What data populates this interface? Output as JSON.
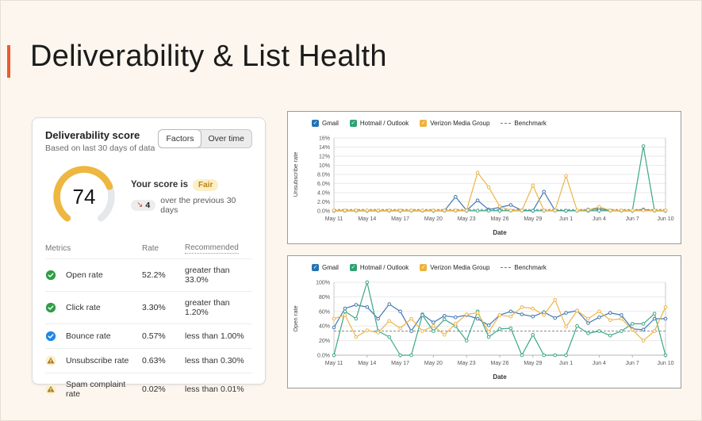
{
  "slide": {
    "title": "Deliverability & List Health",
    "accent_color": "#F0592B",
    "background_color": "#FDF6EE"
  },
  "score_card": {
    "title": "Deliverability score",
    "subtitle": "Based on last 30 days of data",
    "toggle": {
      "factors_label": "Factors",
      "over_time_label": "Over time",
      "selected": "Factors"
    },
    "gauge": {
      "score": "74",
      "max": 100,
      "color": "#EDB740",
      "track_color": "#E5E8EB"
    },
    "score_line": {
      "prefix": "Your score is",
      "rating": "Fair"
    },
    "change_line": {
      "arrow": "↘",
      "delta": "4",
      "text": "over the previous 30 days"
    },
    "table": {
      "col_metrics": "Metrics",
      "col_rate": "Rate",
      "col_recommended": "Recommended",
      "rows": [
        {
          "icon": "check-circle-green",
          "metric": "Open rate",
          "rate": "52.2%",
          "recommended": "greater than 33.0%"
        },
        {
          "icon": "check-circle-green",
          "metric": "Click rate",
          "rate": "3.30%",
          "recommended": "greater than 1.20%"
        },
        {
          "icon": "check-circle-blue",
          "metric": "Bounce rate",
          "rate": "0.57%",
          "recommended": "less than 1.00%"
        },
        {
          "icon": "warning-triangle",
          "metric": "Unsubscribe rate",
          "rate": "0.63%",
          "recommended": "less than 0.30%"
        },
        {
          "icon": "warning-triangle",
          "metric": "Spam complaint rate",
          "rate": "0.02%",
          "recommended": "less than 0.01%"
        }
      ]
    }
  },
  "legend": {
    "items": [
      {
        "label": "Gmail",
        "color": "#2673B4"
      },
      {
        "label": "Hotmail / Outlook",
        "color": "#2FA173"
      },
      {
        "label": "Verizon Media Group",
        "color": "#EFB13C"
      }
    ],
    "benchmark_label": "Benchmark"
  },
  "chart_data": [
    {
      "type": "line",
      "title": "Unsubscribe rate by mailbox provider",
      "xlabel": "Date",
      "ylabel": "Unsubscribe rate",
      "ylim": [
        0,
        16
      ],
      "y_tick_labels": [
        "16%",
        "14%",
        "12%",
        "10%",
        "8.0%",
        "6.0%",
        "4.0%",
        "2.0%",
        "0.0%"
      ],
      "x_tick_labels": [
        "May 11",
        "May 14",
        "May 17",
        "May 20",
        "May 23",
        "May 26",
        "May 29",
        "Jun 1",
        "Jun 4",
        "Jun 7",
        "Jun 10"
      ],
      "benchmark": 0.3,
      "grid": true,
      "legend_position": "top-left",
      "x": [
        "May 11",
        "May 12",
        "May 13",
        "May 14",
        "May 15",
        "May 16",
        "May 17",
        "May 18",
        "May 19",
        "May 20",
        "May 21",
        "May 22",
        "May 23",
        "May 24",
        "May 25",
        "May 26",
        "May 27",
        "May 28",
        "May 29",
        "May 30",
        "May 31",
        "Jun 1",
        "Jun 2",
        "Jun 3",
        "Jun 4",
        "Jun 5",
        "Jun 6",
        "Jun 7",
        "Jun 8",
        "Jun 9",
        "Jun 10"
      ],
      "series": [
        {
          "name": "Gmail",
          "color": "#4378AE",
          "values": [
            0.05,
            0.05,
            0.05,
            0.05,
            0.05,
            0.05,
            0.05,
            0.05,
            0.05,
            0.05,
            0.05,
            3.1,
            0.1,
            2.3,
            0.3,
            0.8,
            1.3,
            0.1,
            0.05,
            4.2,
            0.1,
            0.05,
            0.05,
            0.3,
            0.5,
            0.1,
            0.05,
            0.05,
            0.3,
            0.05,
            0.05
          ]
        },
        {
          "name": "Hotmail / Outlook",
          "color": "#3BA788",
          "values": [
            0.05,
            0.05,
            0.05,
            0.05,
            0.05,
            0.05,
            0.05,
            0.05,
            0.05,
            0.05,
            0.05,
            0.05,
            0.05,
            0.05,
            0.05,
            0.05,
            0.05,
            0.05,
            0.05,
            0.05,
            0.05,
            0.05,
            0.05,
            0.05,
            0.05,
            0.05,
            0.05,
            0.05,
            14.2,
            0.05,
            0.05
          ]
        },
        {
          "name": "Verizon Media Group",
          "color": "#EDB547",
          "values": [
            0.1,
            0.1,
            0.1,
            0.1,
            0.1,
            0.1,
            0.1,
            0.1,
            0.1,
            0.1,
            0.1,
            0.1,
            0.1,
            8.4,
            5.2,
            1.0,
            0.1,
            0.1,
            5.6,
            0.1,
            0.1,
            7.7,
            0.1,
            0.2,
            0.9,
            0.1,
            0.1,
            0.1,
            0.1,
            0.1,
            0.1
          ]
        }
      ]
    },
    {
      "type": "line",
      "title": "Open rate by mailbox provider",
      "xlabel": "Date",
      "ylabel": "Open rate",
      "ylim": [
        0,
        100
      ],
      "y_tick_labels": [
        "100%",
        "80%",
        "60%",
        "40%",
        "20%",
        "0.0%"
      ],
      "x_tick_labels": [
        "May 11",
        "May 14",
        "May 17",
        "May 20",
        "May 23",
        "May 26",
        "May 29",
        "Jun 1",
        "Jun 4",
        "Jun 7",
        "Jun 10"
      ],
      "benchmark": 33,
      "grid": true,
      "legend_position": "top-left",
      "x": [
        "May 11",
        "May 12",
        "May 13",
        "May 14",
        "May 15",
        "May 16",
        "May 17",
        "May 18",
        "May 19",
        "May 20",
        "May 21",
        "May 22",
        "May 23",
        "May 24",
        "May 25",
        "May 26",
        "May 27",
        "May 28",
        "May 29",
        "May 30",
        "May 31",
        "Jun 1",
        "Jun 2",
        "Jun 3",
        "Jun 4",
        "Jun 5",
        "Jun 6",
        "Jun 7",
        "Jun 8",
        "Jun 9",
        "Jun 10"
      ],
      "series": [
        {
          "name": "Gmail",
          "color": "#4378AE",
          "values": [
            38,
            64,
            69,
            66,
            50,
            70,
            60,
            33,
            56,
            45,
            54,
            52,
            55,
            50,
            41,
            55,
            60,
            56,
            53,
            59,
            51,
            58,
            61,
            44,
            52,
            58,
            55,
            36,
            35,
            50,
            50
          ]
        },
        {
          "name": "Hotmail / Outlook",
          "color": "#3BA788",
          "values": [
            0,
            60,
            50,
            100,
            33,
            25,
            0,
            0,
            55,
            33,
            49,
            40,
            20,
            60,
            25,
            36,
            37,
            0,
            28,
            0,
            0,
            0,
            40,
            30,
            33,
            27,
            33,
            43,
            43,
            57,
            0
          ]
        },
        {
          "name": "Verizon Media Group",
          "color": "#EDB547",
          "values": [
            50,
            55,
            25,
            34,
            31,
            47,
            37,
            50,
            33,
            40,
            28,
            43,
            56,
            58,
            32,
            55,
            53,
            66,
            64,
            55,
            76,
            39,
            61,
            50,
            60,
            48,
            50,
            35,
            20,
            33,
            66
          ]
        }
      ]
    }
  ]
}
